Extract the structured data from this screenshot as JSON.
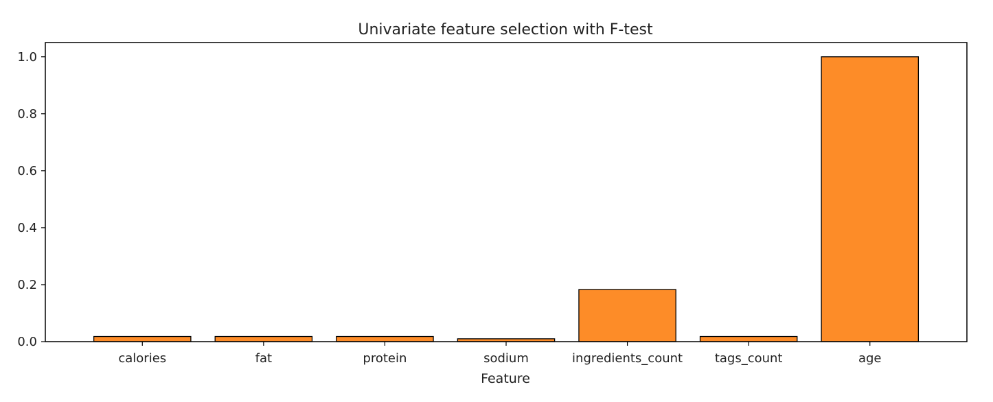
{
  "chart_data": {
    "type": "bar",
    "title": "Univariate feature selection with F-test",
    "xlabel": "Feature",
    "ylabel": "",
    "categories": [
      "calories",
      "fat",
      "protein",
      "sodium",
      "ingredients_count",
      "tags_count",
      "age"
    ],
    "values": [
      0.018,
      0.018,
      0.018,
      0.01,
      0.183,
      0.018,
      1.0
    ],
    "ylim": [
      0,
      1.05
    ],
    "yticks": [
      "0.0",
      "0.2",
      "0.4",
      "0.6",
      "0.8",
      "1.0"
    ],
    "ytick_values": [
      0,
      0.2,
      0.4,
      0.6,
      0.8,
      1.0
    ],
    "grid": false,
    "legend": "none",
    "bar_color": "#fd8c28",
    "bar_edge_color": "#000000"
  }
}
